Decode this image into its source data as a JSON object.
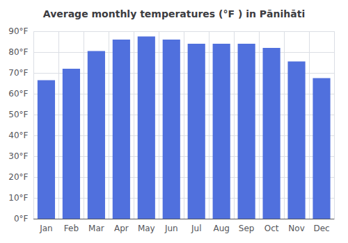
{
  "chart_data": {
    "type": "bar",
    "title": "Average monthly temperatures (°F ) in Pānihāti",
    "categories": [
      "Jan",
      "Feb",
      "Mar",
      "Apr",
      "May",
      "Jun",
      "Jul",
      "Aug",
      "Sep",
      "Oct",
      "Nov",
      "Dec"
    ],
    "values": [
      66.5,
      72.0,
      80.5,
      86.0,
      87.5,
      86.0,
      84.0,
      84.0,
      84.0,
      82.0,
      75.5,
      67.5
    ],
    "ylim": [
      0,
      90
    ],
    "yticks": [
      {
        "value": 0,
        "label": "0°F"
      },
      {
        "value": 10,
        "label": "10°F"
      },
      {
        "value": 20,
        "label": "20°F"
      },
      {
        "value": 30,
        "label": "30°F"
      },
      {
        "value": 40,
        "label": "40°F"
      },
      {
        "value": 50,
        "label": "50°F"
      },
      {
        "value": 60,
        "label": "60°F"
      },
      {
        "value": 70,
        "label": "70°F"
      },
      {
        "value": 80,
        "label": "80°F"
      },
      {
        "value": 90,
        "label": "90°F"
      }
    ],
    "grid": true
  }
}
